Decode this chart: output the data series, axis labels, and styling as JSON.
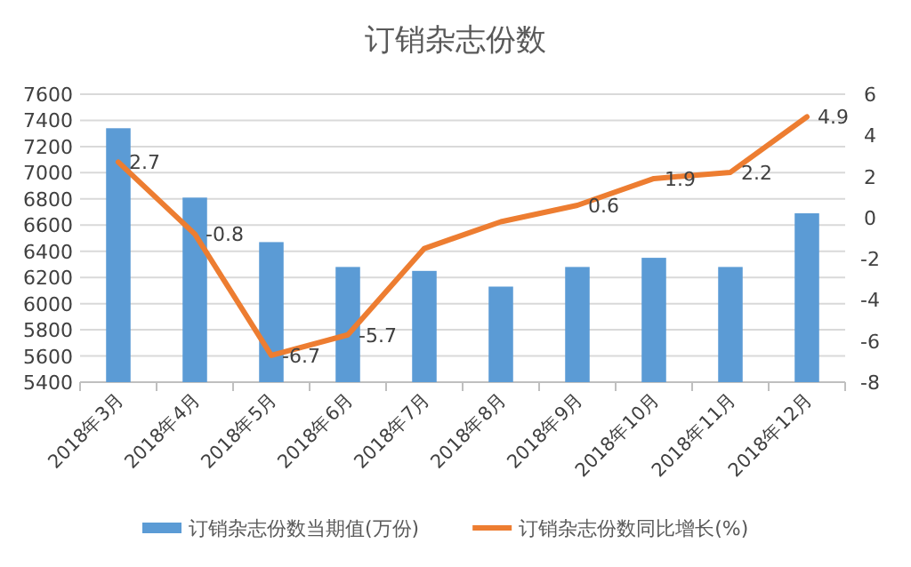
{
  "chart_data": {
    "type": "bar",
    "title": "订销杂志份数",
    "categories": [
      "2018年3月",
      "2018年4月",
      "2018年5月",
      "2018年6月",
      "2018年7月",
      "2018年8月",
      "2018年9月",
      "2018年10月",
      "2018年11月",
      "2018年12月"
    ],
    "series": [
      {
        "name": "订销杂志份数当期值(万份)",
        "color": "#5b9bd5",
        "values": [
          7340,
          6810,
          6470,
          6280,
          6250,
          6130,
          6280,
          6350,
          6280,
          6690
        ]
      },
      {
        "name": "订销杂志份数同比增长(%)",
        "type": "line",
        "axis": "y2",
        "color": "#ed7d31",
        "values": [
          2.7,
          -0.8,
          -6.7,
          -5.7,
          -1.5,
          -0.2,
          0.6,
          1.9,
          2.2,
          4.9
        ],
        "value_labels": [
          "2.7",
          "-0.8",
          "-6.7",
          "-5.7",
          null,
          null,
          "0.6",
          "1.9",
          "2.2",
          "4.9"
        ]
      }
    ],
    "ylim": [
      5400,
      7600
    ],
    "yticks": [
      5400,
      5600,
      5800,
      6000,
      6200,
      6400,
      6600,
      6800,
      7000,
      7200,
      7400,
      7600
    ],
    "y2lim": [
      -8,
      6
    ],
    "y2ticks": [
      -8,
      -6,
      -4,
      -2,
      0,
      2,
      4,
      6
    ],
    "grid": "y",
    "legend": "bottom",
    "marker": "none",
    "line_style": "solid"
  }
}
